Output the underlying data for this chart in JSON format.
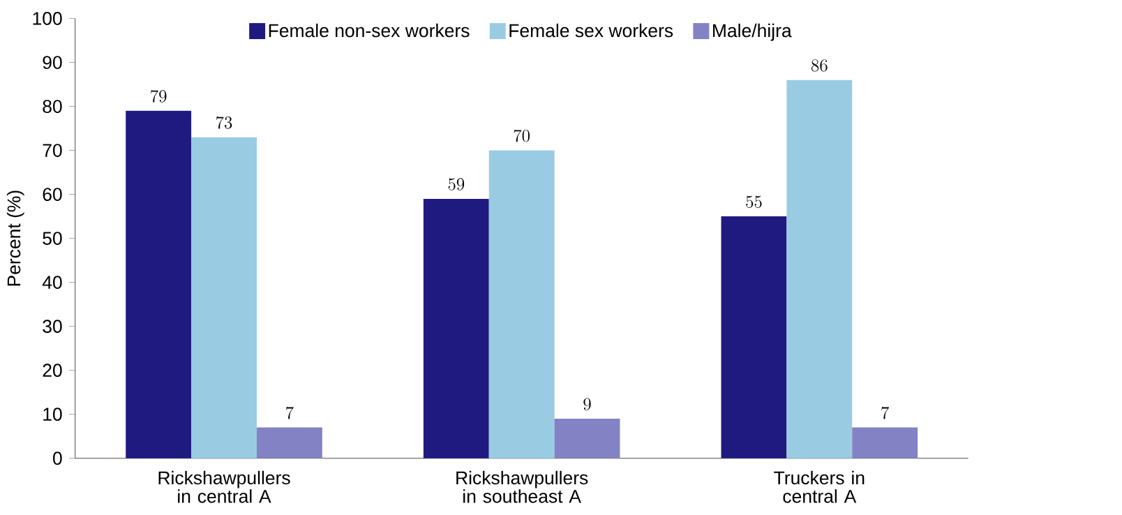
{
  "chart_data": {
    "type": "bar",
    "ylabel": "Percent (%)",
    "categories": [
      "Rickshawpullers in central A",
      "Rickshawpullers in southeast A",
      "Truckers in central A"
    ],
    "series": [
      {
        "name": "Female non-sex workers",
        "color": "#1f1a80",
        "values": [
          79,
          59,
          55
        ]
      },
      {
        "name": "Female sex workers",
        "color": "#99cce2",
        "values": [
          73,
          70,
          86
        ]
      },
      {
        "name": "Male/hijra",
        "color": "#8282c4",
        "values": [
          7,
          9,
          7
        ]
      }
    ],
    "ylim": [
      0,
      100
    ],
    "yticks": [
      0,
      10,
      20,
      30,
      40,
      50,
      60,
      70,
      80,
      90,
      100
    ],
    "data_labels": true,
    "legend": "top",
    "grid": false
  }
}
